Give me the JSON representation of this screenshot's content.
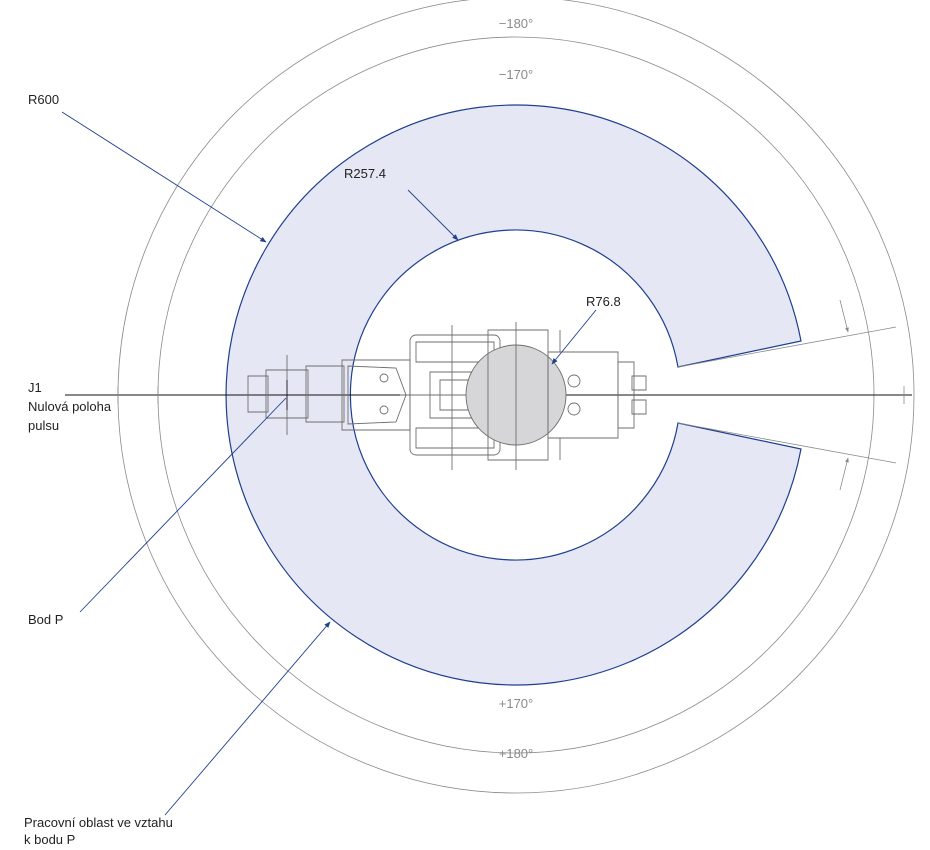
{
  "labels": {
    "r600": "R600",
    "r257": "R257.4",
    "r76": "R76.8",
    "j1_line1": "J1",
    "j1_line2": "Nulová poloha",
    "j1_line3": "pulsu",
    "bod_p": "Bod P",
    "work_area_line1": "Pracovní oblast ve vztahu",
    "work_area_line2": "k bodu P"
  },
  "angles": {
    "minus180": "−180°",
    "minus170": "−170°",
    "plus170": "+170°",
    "plus180": "+180°"
  },
  "colors": {
    "work_area_fill": "#e6e7f4",
    "work_area_edge": "#1f3f8f",
    "leader": "#1f3f8f",
    "dimension": "#8a8a8a",
    "robot": "#6e6e6e",
    "axis": "#111111"
  }
}
